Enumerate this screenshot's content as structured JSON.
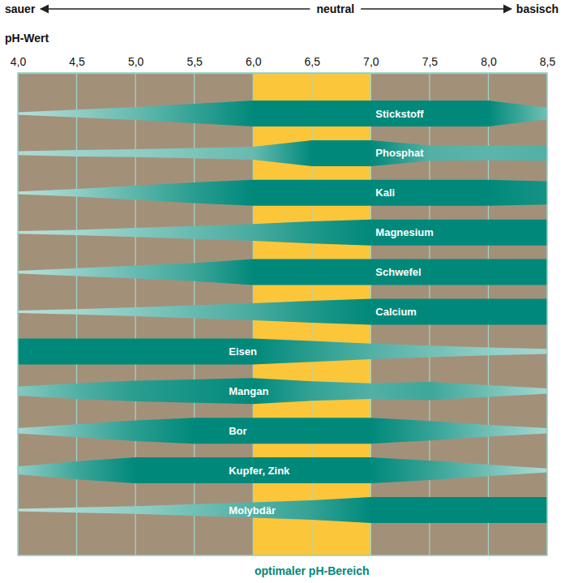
{
  "chart_data": {
    "type": "band",
    "scale_labels": [
      "sauer",
      "neutral",
      "basisch"
    ],
    "x_label": "pH-Wert",
    "x": [
      4.0,
      4.5,
      5.0,
      5.5,
      6.0,
      6.5,
      7.0,
      7.5,
      8.0,
      8.5
    ],
    "xlim": [
      4.0,
      8.5
    ],
    "xticks": [
      {
        "value": 4.0,
        "label": "4,0"
      },
      {
        "value": 4.5,
        "label": "4,5"
      },
      {
        "value": 5.0,
        "label": "5,0"
      },
      {
        "value": 5.5,
        "label": "5,5"
      },
      {
        "value": 6.0,
        "label": "6,0"
      },
      {
        "value": 6.5,
        "label": "6,5"
      },
      {
        "value": 7.0,
        "label": "7,0"
      },
      {
        "value": 7.5,
        "label": "7,5"
      },
      {
        "value": 8.0,
        "label": "8,0"
      },
      {
        "value": 8.5,
        "label": "8,5"
      }
    ],
    "grid": true,
    "tick_labels": "x",
    "color": "#00897a",
    "optimal_range": [
      6.0,
      7.0
    ],
    "optimal_label": "optimaler pH-Bereich",
    "series": [
      {
        "name": "Stickstoff",
        "values": [
          0.1,
          0.3,
          0.5,
          0.75,
          1,
          1,
          1,
          1,
          1,
          0.45
        ]
      },
      {
        "name": "Phosphat",
        "values": [
          0.15,
          0.25,
          0.3,
          0.4,
          0.5,
          1,
          1,
          0.6,
          0.55,
          0.6
        ]
      },
      {
        "name": "Kali",
        "values": [
          0.1,
          0.3,
          0.55,
          0.8,
          1,
          1,
          1,
          1,
          1,
          0.9
        ]
      },
      {
        "name": "Magnesium",
        "values": [
          0.1,
          0.2,
          0.35,
          0.5,
          0.65,
          0.85,
          1,
          1,
          1,
          1
        ]
      },
      {
        "name": "Schwefel",
        "values": [
          0.1,
          0.3,
          0.5,
          0.7,
          1,
          1,
          1,
          1,
          1,
          1
        ]
      },
      {
        "name": "Calcium",
        "values": [
          0.1,
          0.2,
          0.35,
          0.5,
          0.65,
          0.85,
          1,
          1,
          1,
          1
        ]
      },
      {
        "name": "Eisen",
        "values": [
          1,
          1,
          1,
          1,
          1,
          0.8,
          0.6,
          0.45,
          0.3,
          0.2
        ]
      },
      {
        "name": "Mangan",
        "values": [
          0.35,
          0.6,
          0.8,
          0.9,
          1,
          0.75,
          0.6,
          0.7,
          0.45,
          0.2
        ]
      },
      {
        "name": "Bor",
        "values": [
          0.2,
          0.5,
          0.8,
          1,
          1,
          1,
          1,
          0.75,
          0.45,
          0.2
        ]
      },
      {
        "name": "Kupfer, Zink",
        "values": [
          0.3,
          0.7,
          1,
          1,
          1,
          1,
          1,
          0.75,
          0.45,
          0.15
        ]
      },
      {
        "name": "Molybdär",
        "values": [
          0.1,
          0.2,
          0.3,
          0.45,
          0.6,
          0.75,
          1,
          1,
          1,
          1
        ]
      }
    ]
  }
}
